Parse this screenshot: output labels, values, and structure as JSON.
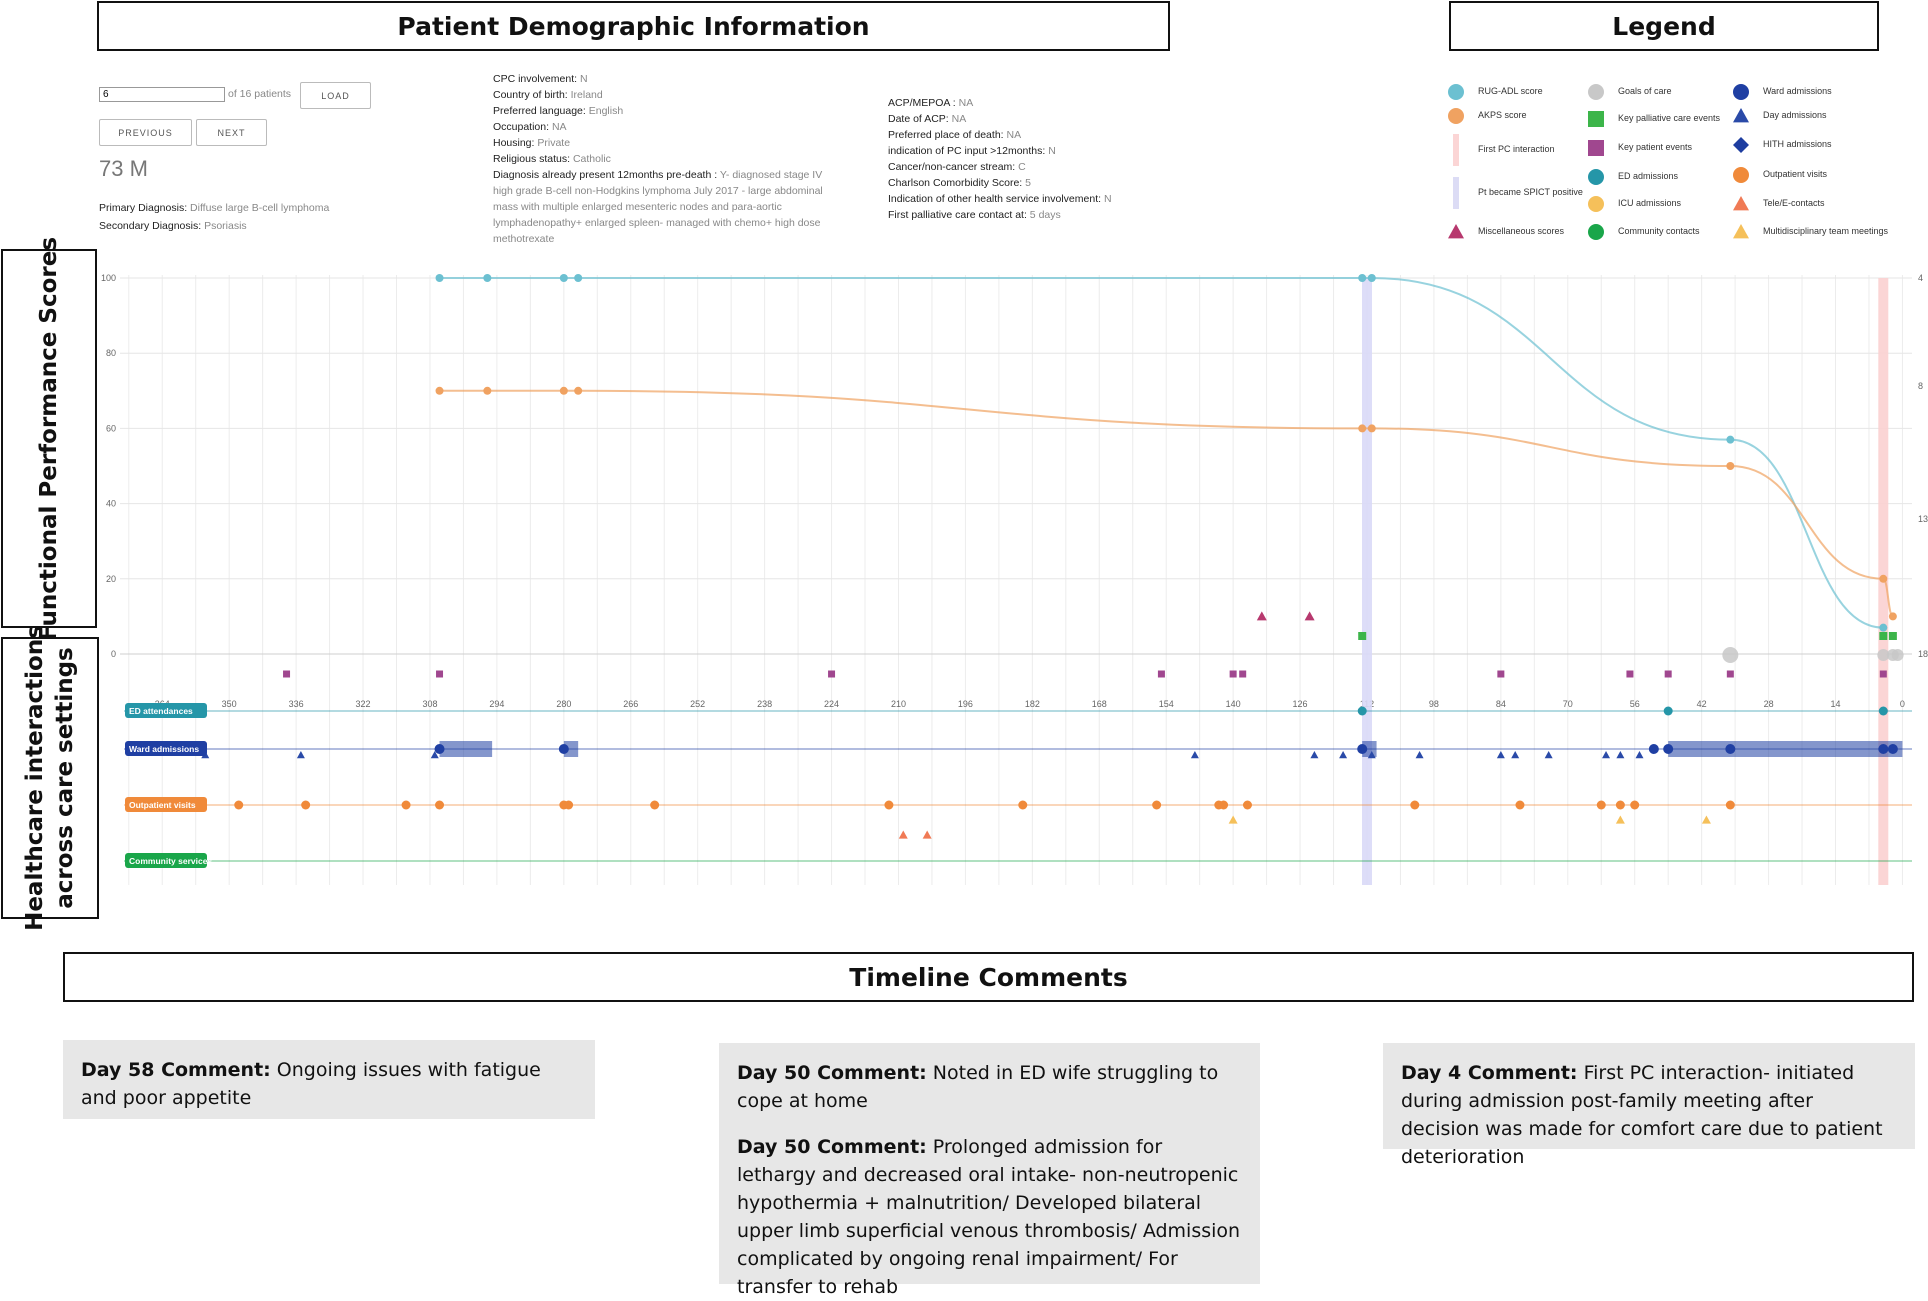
{
  "headers": {
    "demographics": "Patient Demographic Information",
    "legend": "Legend",
    "functional": "Functional Performance Scores",
    "healthcare_line1": "Healthcare interactions",
    "healthcare_line2": "across care settings",
    "comments": "Timeline Comments"
  },
  "controls": {
    "patient_input_value": "6",
    "of_patients": "of 16 patients",
    "load_label": "LOAD",
    "previous_label": "PREVIOUS",
    "next_label": "NEXT",
    "age_sex": "73 M"
  },
  "diagnosis": {
    "primary_key": "Primary Diagnosis:",
    "primary_val": "Diffuse large B-cell lymphoma",
    "secondary_key": "Secondary Diagnosis:",
    "secondary_val": "Psoriasis"
  },
  "demo_col2": [
    {
      "k": "CPC involvement:",
      "v": "N"
    },
    {
      "k": "Country of birth:",
      "v": "Ireland"
    },
    {
      "k": "Preferred language:",
      "v": "English"
    },
    {
      "k": "Occupation:",
      "v": "NA"
    },
    {
      "k": "Housing:",
      "v": "Private"
    },
    {
      "k": "Religious status:",
      "v": "Catholic"
    },
    {
      "k": "Diagnosis already present 12months pre-death :",
      "v": "Y- diagnosed stage IV"
    }
  ],
  "diagnosis_cont": [
    "high grade B-cell non-Hodgkins lymphoma July 2017 - large abdominal",
    "mass with multiple enlarged mesenteric nodes and para-aortic",
    "lymphadenopathy+ enlarged spleen- managed with chemo+ high dose",
    "methotrexate"
  ],
  "demo_col3": [
    {
      "k": "ACP/MEPOA :",
      "v": "NA"
    },
    {
      "k": "Date of ACP:",
      "v": "NA"
    },
    {
      "k": "Preferred place of death:",
      "v": "NA"
    },
    {
      "k": "indication of PC input >12months:",
      "v": "N"
    },
    {
      "k": "Cancer/non-cancer stream:",
      "v": "C"
    },
    {
      "k": "Charlson Comorbidity Score:",
      "v": "5"
    },
    {
      "k": "Indication of other health service involvement:",
      "v": "N"
    },
    {
      "k": "First palliative care contact at:",
      "v": "5 days"
    }
  ],
  "legend": [
    {
      "label": "RUG-ADL score",
      "shape": "circle",
      "color": "#6cc0d1"
    },
    {
      "label": "AKPS score",
      "shape": "circle",
      "color": "#f0a261"
    },
    {
      "label": "First PC interaction",
      "shape": "bar",
      "color": "#fbd5d5"
    },
    {
      "label": "Pt became SPICT positive",
      "shape": "bar",
      "color": "#dcdcf5"
    },
    {
      "label": "Miscellaneous scores",
      "shape": "triangle",
      "color": "#b7386e"
    },
    {
      "label": "Goals of care",
      "shape": "circle",
      "color": "#c8c8c8"
    },
    {
      "label": "Key palliative care events",
      "shape": "square",
      "color": "#3cb54a"
    },
    {
      "label": "Key patient events",
      "shape": "square",
      "color": "#a0478f"
    },
    {
      "label": "ED admissions",
      "shape": "circle",
      "color": "#2596a8"
    },
    {
      "label": "ICU admissions",
      "shape": "circle",
      "color": "#f5c05a"
    },
    {
      "label": "Community contacts",
      "shape": "circle",
      "color": "#1aa64a"
    },
    {
      "label": "Ward admissions",
      "shape": "circle",
      "color": "#1f3fa3"
    },
    {
      "label": "Day admissions",
      "shape": "triangle",
      "color": "#2a4aa8"
    },
    {
      "label": "HITH admissions",
      "shape": "diamond",
      "color": "#1e3da0"
    },
    {
      "label": "Outpatient visits",
      "shape": "circle",
      "color": "#f08a3a"
    },
    {
      "label": "Tele/E-contacts",
      "shape": "triangle",
      "color": "#f07a55"
    },
    {
      "label": "Multidisciplinary team meetings",
      "shape": "triangle",
      "color": "#f5c05a"
    }
  ],
  "colors": {
    "rug": "#6cc0d1",
    "akps": "#f0a261",
    "ed": "#2596a8",
    "ward": "#1f3fa3",
    "outpatient": "#f08a3a",
    "community": "#1aa64a",
    "patient_event": "#a0478f",
    "pc_event": "#3cb54a",
    "misc": "#b7386e",
    "tele": "#f07a55",
    "mdt": "#f5c05a",
    "goals": "#c8c8c8"
  },
  "chart_data": {
    "type": "line",
    "x_axis": {
      "reversed": true,
      "range": [
        372,
        -2
      ],
      "ticks": [
        364,
        350,
        336,
        322,
        308,
        294,
        280,
        266,
        252,
        238,
        224,
        210,
        196,
        182,
        168,
        154,
        140,
        126,
        112,
        98,
        84,
        70,
        56,
        42,
        28,
        14,
        0
      ]
    },
    "y_axis": {
      "range": [
        0,
        100
      ],
      "ticks": [
        0,
        20,
        40,
        60,
        80,
        100
      ]
    },
    "right_ticks": [
      "4",
      "8",
      "13",
      "18"
    ],
    "series": [
      {
        "name": "RUG-ADL score",
        "points": [
          [
            306,
            100
          ],
          [
            296,
            100
          ],
          [
            280,
            100
          ],
          [
            277,
            100
          ],
          [
            113,
            100
          ],
          [
            111,
            100
          ],
          [
            36,
            57
          ],
          [
            4,
            7
          ]
        ]
      },
      {
        "name": "AKPS score",
        "points": [
          [
            306,
            70
          ],
          [
            296,
            70
          ],
          [
            280,
            70
          ],
          [
            277,
            70
          ],
          [
            113,
            60
          ],
          [
            111,
            60
          ],
          [
            36,
            50
          ],
          [
            4,
            20
          ],
          [
            2,
            10
          ]
        ]
      }
    ],
    "first_pc_interaction_day": 4,
    "spict_positive_day": 112,
    "key_patient_events": [
      338,
      306,
      224,
      155,
      140,
      138,
      84,
      57,
      49,
      36,
      4
    ],
    "key_pc_events": [
      113,
      4,
      2
    ],
    "misc_scores": [
      [
        134,
        10
      ],
      [
        124,
        10
      ]
    ],
    "goals_of_care": [
      36,
      4,
      2,
      1
    ],
    "lanes": [
      {
        "name": "ED attendances",
        "events": [
          113,
          49,
          4
        ]
      },
      {
        "name": "Ward admissions",
        "admissions": [
          [
            306,
            295
          ],
          [
            280,
            277
          ],
          [
            113,
            110
          ],
          [
            49,
            0
          ]
        ],
        "dots": [
          306,
          280,
          113,
          52,
          49,
          36,
          4,
          2
        ],
        "day_admissions": [
          355,
          335,
          307,
          148,
          123,
          117,
          111,
          101,
          84,
          81,
          74,
          62,
          59,
          55
        ]
      },
      {
        "name": "Outpatient visits",
        "events": [
          348,
          334,
          313,
          306,
          280,
          279,
          261,
          212,
          184,
          156,
          143,
          142,
          137,
          102,
          80,
          63,
          59,
          56,
          36
        ],
        "tele": [
          209,
          204
        ],
        "mdt": [
          140,
          59,
          41
        ]
      },
      {
        "name": "Community services",
        "events": []
      }
    ]
  },
  "comments": [
    {
      "items": [
        {
          "k": "Day 58 Comment:",
          "v": "Ongoing issues with fatigue and poor appetite"
        }
      ]
    },
    {
      "items": [
        {
          "k": "Day 50 Comment:",
          "v": "Noted in ED wife struggling to cope at home"
        },
        {
          "k": "Day 50 Comment:",
          "v": "Prolonged admission for lethargy and decreased oral intake- non-neutropenic hypothermia + malnutrition/ Developed bilateral upper limb superficial venous thrombosis/ Admission complicated by ongoing renal impairment/ For transfer to rehab"
        }
      ]
    },
    {
      "items": [
        {
          "k": "Day 4 Comment:",
          "v": "First PC interaction- initiated during admission post-family meeting after decision was made for comfort care due to patient deterioration"
        }
      ]
    }
  ]
}
